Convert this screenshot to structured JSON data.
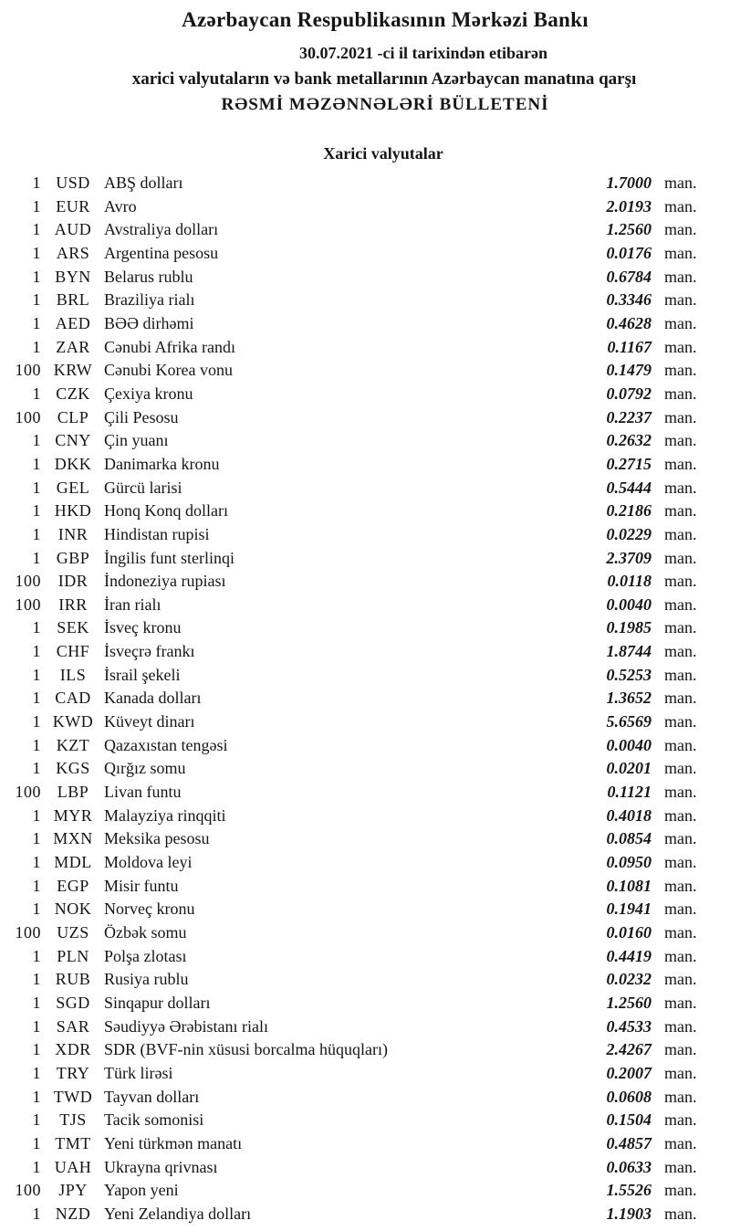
{
  "header": {
    "title": "Azərbaycan Respublikasının Mərkəzi Bankı",
    "date_line": "30.07.2021 -ci il tarixindən etibarən",
    "subtitle": "xarici valyutaların və bank metallarının Azərbaycan manatına qarşı",
    "bulletin_title": "RƏSMİ MƏZƏNNƏLƏRİ BÜLLETENİ"
  },
  "section_title": "Xarici valyutalar",
  "unit_label": "man.",
  "colors": {
    "text": "#151515",
    "background": "#ffffff"
  },
  "rates": [
    {
      "qty": "1",
      "code": "USD",
      "name": "ABŞ dolları",
      "rate": "1.7000"
    },
    {
      "qty": "1",
      "code": "EUR",
      "name": "Avro",
      "rate": "2.0193"
    },
    {
      "qty": "1",
      "code": "AUD",
      "name": "Avstraliya dolları",
      "rate": "1.2560"
    },
    {
      "qty": "1",
      "code": "ARS",
      "name": "Argentina pesosu",
      "rate": "0.0176"
    },
    {
      "qty": "1",
      "code": "BYN",
      "name": "Belarus rublu",
      "rate": "0.6784"
    },
    {
      "qty": "1",
      "code": "BRL",
      "name": "Braziliya rialı",
      "rate": "0.3346"
    },
    {
      "qty": "1",
      "code": "AED",
      "name": "BƏƏ dirhəmi",
      "rate": "0.4628"
    },
    {
      "qty": "1",
      "code": "ZAR",
      "name": "Cənubi Afrika randı",
      "rate": "0.1167"
    },
    {
      "qty": "100",
      "code": "KRW",
      "name": "Cənubi Korea vonu",
      "rate": "0.1479"
    },
    {
      "qty": "1",
      "code": "CZK",
      "name": "Çexiya kronu",
      "rate": "0.0792"
    },
    {
      "qty": "100",
      "code": "CLP",
      "name": "Çili Pesosu",
      "rate": "0.2237"
    },
    {
      "qty": "1",
      "code": "CNY",
      "name": "Çin yuanı",
      "rate": "0.2632"
    },
    {
      "qty": "1",
      "code": "DKK",
      "name": "Danimarka kronu",
      "rate": "0.2715"
    },
    {
      "qty": "1",
      "code": "GEL",
      "name": "Gürcü larisi",
      "rate": "0.5444"
    },
    {
      "qty": "1",
      "code": "HKD",
      "name": "Honq Konq dolları",
      "rate": "0.2186"
    },
    {
      "qty": "1",
      "code": "INR",
      "name": "Hindistan rupisi",
      "rate": "0.0229"
    },
    {
      "qty": "1",
      "code": "GBP",
      "name": "İngilis funt sterlinqi",
      "rate": "2.3709"
    },
    {
      "qty": "100",
      "code": "IDR",
      "name": "İndoneziya rupiası",
      "rate": "0.0118"
    },
    {
      "qty": "100",
      "code": "IRR",
      "name": "İran rialı",
      "rate": "0.0040"
    },
    {
      "qty": "1",
      "code": "SEK",
      "name": "İsveç kronu",
      "rate": "0.1985"
    },
    {
      "qty": "1",
      "code": "CHF",
      "name": "İsveçrə frankı",
      "rate": "1.8744"
    },
    {
      "qty": "1",
      "code": "ILS",
      "name": "İsrail şekeli",
      "rate": "0.5253"
    },
    {
      "qty": "1",
      "code": "CAD",
      "name": "Kanada dolları",
      "rate": "1.3652"
    },
    {
      "qty": "1",
      "code": "KWD",
      "name": "Küveyt dinarı",
      "rate": "5.6569"
    },
    {
      "qty": "1",
      "code": "KZT",
      "name": "Qazaxıstan tengəsi",
      "rate": "0.0040"
    },
    {
      "qty": "1",
      "code": "KGS",
      "name": "Qırğız somu",
      "rate": "0.0201"
    },
    {
      "qty": "100",
      "code": "LBP",
      "name": "Livan funtu",
      "rate": "0.1121"
    },
    {
      "qty": "1",
      "code": "MYR",
      "name": "Malayziya rinqqiti",
      "rate": "0.4018"
    },
    {
      "qty": "1",
      "code": "MXN",
      "name": "Meksika pesosu",
      "rate": "0.0854"
    },
    {
      "qty": "1",
      "code": "MDL",
      "name": "Moldova leyi",
      "rate": "0.0950"
    },
    {
      "qty": "1",
      "code": "EGP",
      "name": "Misir funtu",
      "rate": "0.1081"
    },
    {
      "qty": "1",
      "code": "NOK",
      "name": "Norveç kronu",
      "rate": "0.1941"
    },
    {
      "qty": "100",
      "code": "UZS",
      "name": "Özbək somu",
      "rate": "0.0160"
    },
    {
      "qty": "1",
      "code": "PLN",
      "name": "Polşa zlotası",
      "rate": "0.4419"
    },
    {
      "qty": "1",
      "code": "RUB",
      "name": "Rusiya rublu",
      "rate": "0.0232"
    },
    {
      "qty": "1",
      "code": "SGD",
      "name": "Sinqapur dolları",
      "rate": "1.2560"
    },
    {
      "qty": "1",
      "code": "SAR",
      "name": "Səudiyyə Ərəbistanı rialı",
      "rate": "0.4533"
    },
    {
      "qty": "1",
      "code": "XDR",
      "name": "SDR (BVF-nin xüsusi borcalma hüquqları)",
      "rate": "2.4267"
    },
    {
      "qty": "1",
      "code": "TRY",
      "name": "Türk lirəsi",
      "rate": "0.2007"
    },
    {
      "qty": "1",
      "code": "TWD",
      "name": "Tayvan dolları",
      "rate": "0.0608"
    },
    {
      "qty": "1",
      "code": "TJS",
      "name": "Tacik somonisi",
      "rate": "0.1504"
    },
    {
      "qty": "1",
      "code": "TMT",
      "name": "Yeni türkmən manatı",
      "rate": "0.4857"
    },
    {
      "qty": "1",
      "code": "UAH",
      "name": "Ukrayna qrivnası",
      "rate": "0.0633"
    },
    {
      "qty": "100",
      "code": "JPY",
      "name": "Yapon yeni",
      "rate": "1.5526"
    },
    {
      "qty": "1",
      "code": "NZD",
      "name": "Yeni Zelandiya dolları",
      "rate": "1.1903"
    }
  ]
}
